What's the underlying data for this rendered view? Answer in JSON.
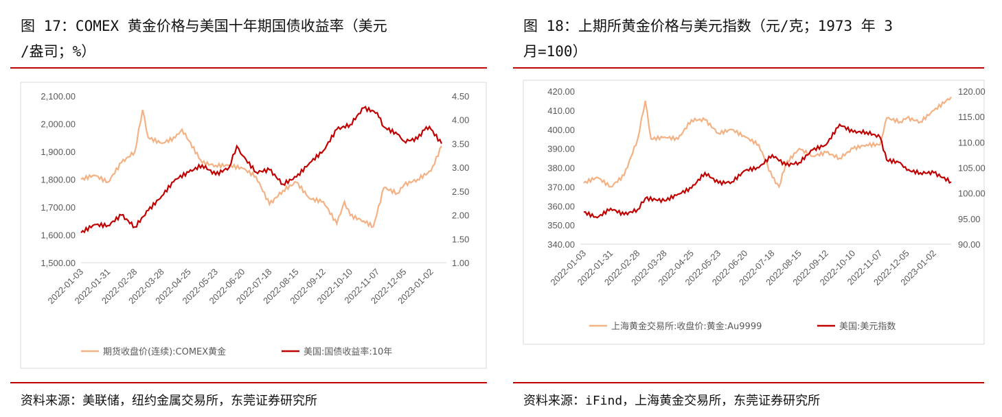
{
  "left": {
    "title": "图 17：COMEX 黄金价格与美国十年期国债收益率（美元/盎司；%）",
    "title_l1": "图 17：COMEX 黄金价格与美国十年期国债收益率（美元",
    "title_l2": "/盎司；%）",
    "source": "资料来源：美联储，纽约金属交易所，东莞证券研究所"
  },
  "right": {
    "title": "图 18：上期所黄金价格与美元指数（元/克；1973 年 3 月=100）",
    "title_l1": "图 18：上期所黄金价格与美元指数（元/克；1973 年 3",
    "title_l2": "月=100）",
    "source": "资料来源：iFind，上海黄金交易所，东莞证券研究所"
  },
  "chart_data": [
    {
      "type": "line",
      "title": "",
      "xlabel": "",
      "ylabel": "",
      "grid": false,
      "legend": "bottom",
      "xticks": [
        "2022-01-03",
        "2022-01-31",
        "2022-02-28",
        "2022-03-28",
        "2022-04-25",
        "2022-05-23",
        "2022-06-20",
        "2022-07-18",
        "2022-08-15",
        "2022-09-12",
        "2022-10-10",
        "2022-11-07",
        "2022-12-05",
        "2023-01-02"
      ],
      "xlim": [
        "2022-01-03",
        "2023-01-13"
      ],
      "ylim_left": [
        1500,
        2100
      ],
      "yticks_left": [
        "1,500.00",
        "1,600.00",
        "1,700.00",
        "1,800.00",
        "1,900.00",
        "2,000.00",
        "2,100.00"
      ],
      "ylim_right": [
        1.0,
        4.5
      ],
      "yticks_right": [
        "1.00",
        "1.50",
        "2.00",
        "2.50",
        "3.00",
        "3.50",
        "4.00",
        "4.50"
      ],
      "series": [
        {
          "name": "期货收盘价(连续):COMEX黄金",
          "axis": "left",
          "color": "#f4b183",
          "x": [
            "2022-01-03",
            "2022-01-17",
            "2022-01-31",
            "2022-02-14",
            "2022-02-28",
            "2022-03-08",
            "2022-03-14",
            "2022-03-28",
            "2022-04-11",
            "2022-04-18",
            "2022-05-09",
            "2022-05-23",
            "2022-06-06",
            "2022-06-20",
            "2022-07-04",
            "2022-07-18",
            "2022-08-01",
            "2022-08-15",
            "2022-08-29",
            "2022-09-12",
            "2022-09-26",
            "2022-10-04",
            "2022-10-10",
            "2022-10-24",
            "2022-11-03",
            "2022-11-14",
            "2022-11-28",
            "2022-12-05",
            "2022-12-19",
            "2023-01-02",
            "2023-01-13"
          ],
          "values": [
            1800,
            1815,
            1790,
            1860,
            1900,
            2050,
            1950,
            1930,
            1950,
            1980,
            1860,
            1850,
            1850,
            1840,
            1810,
            1710,
            1760,
            1790,
            1730,
            1720,
            1640,
            1720,
            1670,
            1650,
            1630,
            1770,
            1750,
            1780,
            1800,
            1830,
            1920
          ]
        },
        {
          "name": "美国:国债收益率:10年",
          "axis": "right",
          "color": "#c00000",
          "x": [
            "2022-01-03",
            "2022-01-17",
            "2022-01-31",
            "2022-02-14",
            "2022-02-28",
            "2022-03-14",
            "2022-03-28",
            "2022-04-11",
            "2022-04-25",
            "2022-05-09",
            "2022-05-23",
            "2022-06-06",
            "2022-06-14",
            "2022-06-20",
            "2022-07-04",
            "2022-07-18",
            "2022-08-01",
            "2022-08-15",
            "2022-08-29",
            "2022-09-12",
            "2022-09-26",
            "2022-10-10",
            "2022-10-24",
            "2022-11-07",
            "2022-11-14",
            "2022-11-28",
            "2022-12-05",
            "2022-12-19",
            "2022-12-28",
            "2023-01-02",
            "2023-01-13"
          ],
          "values": [
            1.63,
            1.8,
            1.78,
            2.0,
            1.75,
            2.1,
            2.4,
            2.75,
            2.9,
            3.05,
            2.85,
            3.0,
            3.45,
            3.25,
            2.9,
            2.95,
            2.65,
            2.8,
            3.1,
            3.35,
            3.8,
            3.9,
            4.25,
            4.15,
            3.85,
            3.7,
            3.55,
            3.6,
            3.85,
            3.8,
            3.5
          ]
        }
      ]
    },
    {
      "type": "line",
      "title": "",
      "xlabel": "",
      "ylabel": "",
      "grid": false,
      "legend": "bottom",
      "xticks": [
        "2022-01-03",
        "2022-01-31",
        "2022-02-28",
        "2022-03-28",
        "2022-04-25",
        "2022-05-23",
        "2022-06-20",
        "2022-07-18",
        "2022-08-15",
        "2022-09-12",
        "2022-10-10",
        "2022-11-07",
        "2022-12-05",
        "2023-01-02"
      ],
      "xlim": [
        "2022-01-03",
        "2023-01-20"
      ],
      "ylim_left": [
        340,
        420
      ],
      "yticks_left": [
        "340.00",
        "350.00",
        "360.00",
        "370.00",
        "380.00",
        "390.00",
        "400.00",
        "410.00",
        "420.00"
      ],
      "ylim_right": [
        90,
        120
      ],
      "yticks_right": [
        "90.00",
        "95.00",
        "100.00",
        "105.00",
        "110.00",
        "115.00",
        "120.00"
      ],
      "series": [
        {
          "name": "上海黄金交易所:收盘价:黄金:Au9999",
          "axis": "left",
          "color": "#f4b183",
          "x": [
            "2022-01-03",
            "2022-01-17",
            "2022-01-31",
            "2022-02-14",
            "2022-02-28",
            "2022-03-08",
            "2022-03-14",
            "2022-03-28",
            "2022-04-11",
            "2022-04-25",
            "2022-05-09",
            "2022-05-23",
            "2022-06-06",
            "2022-06-20",
            "2022-07-04",
            "2022-07-18",
            "2022-07-25",
            "2022-08-01",
            "2022-08-15",
            "2022-08-29",
            "2022-09-12",
            "2022-09-26",
            "2022-10-10",
            "2022-10-24",
            "2022-11-07",
            "2022-11-14",
            "2022-11-28",
            "2022-12-05",
            "2022-12-19",
            "2023-01-02",
            "2023-01-20"
          ],
          "values": [
            372,
            375,
            370,
            376,
            395,
            415,
            395,
            396,
            395,
            405,
            405,
            398,
            400,
            396,
            392,
            375,
            370,
            382,
            390,
            386,
            388,
            385,
            390,
            392,
            392,
            406,
            404,
            406,
            404,
            410,
            417
          ]
        },
        {
          "name": "美国:美元指数",
          "axis": "right",
          "color": "#c00000",
          "x": [
            "2022-01-03",
            "2022-01-17",
            "2022-01-31",
            "2022-02-14",
            "2022-02-28",
            "2022-03-08",
            "2022-03-28",
            "2022-04-11",
            "2022-04-25",
            "2022-05-09",
            "2022-05-23",
            "2022-06-06",
            "2022-06-20",
            "2022-07-04",
            "2022-07-18",
            "2022-08-01",
            "2022-08-15",
            "2022-08-29",
            "2022-09-12",
            "2022-09-26",
            "2022-10-10",
            "2022-10-24",
            "2022-11-07",
            "2022-11-14",
            "2022-11-28",
            "2022-12-05",
            "2022-12-19",
            "2023-01-02",
            "2023-01-20"
          ],
          "values": [
            96.3,
            95.2,
            97.0,
            95.8,
            96.8,
            99.0,
            98.5,
            99.8,
            101.0,
            104.0,
            102.0,
            102.2,
            104.5,
            105.0,
            107.5,
            105.5,
            106.0,
            108.5,
            109.5,
            113.5,
            112.0,
            112.0,
            111.0,
            106.5,
            106.0,
            104.5,
            104.0,
            104.0,
            102.2
          ]
        }
      ]
    }
  ]
}
